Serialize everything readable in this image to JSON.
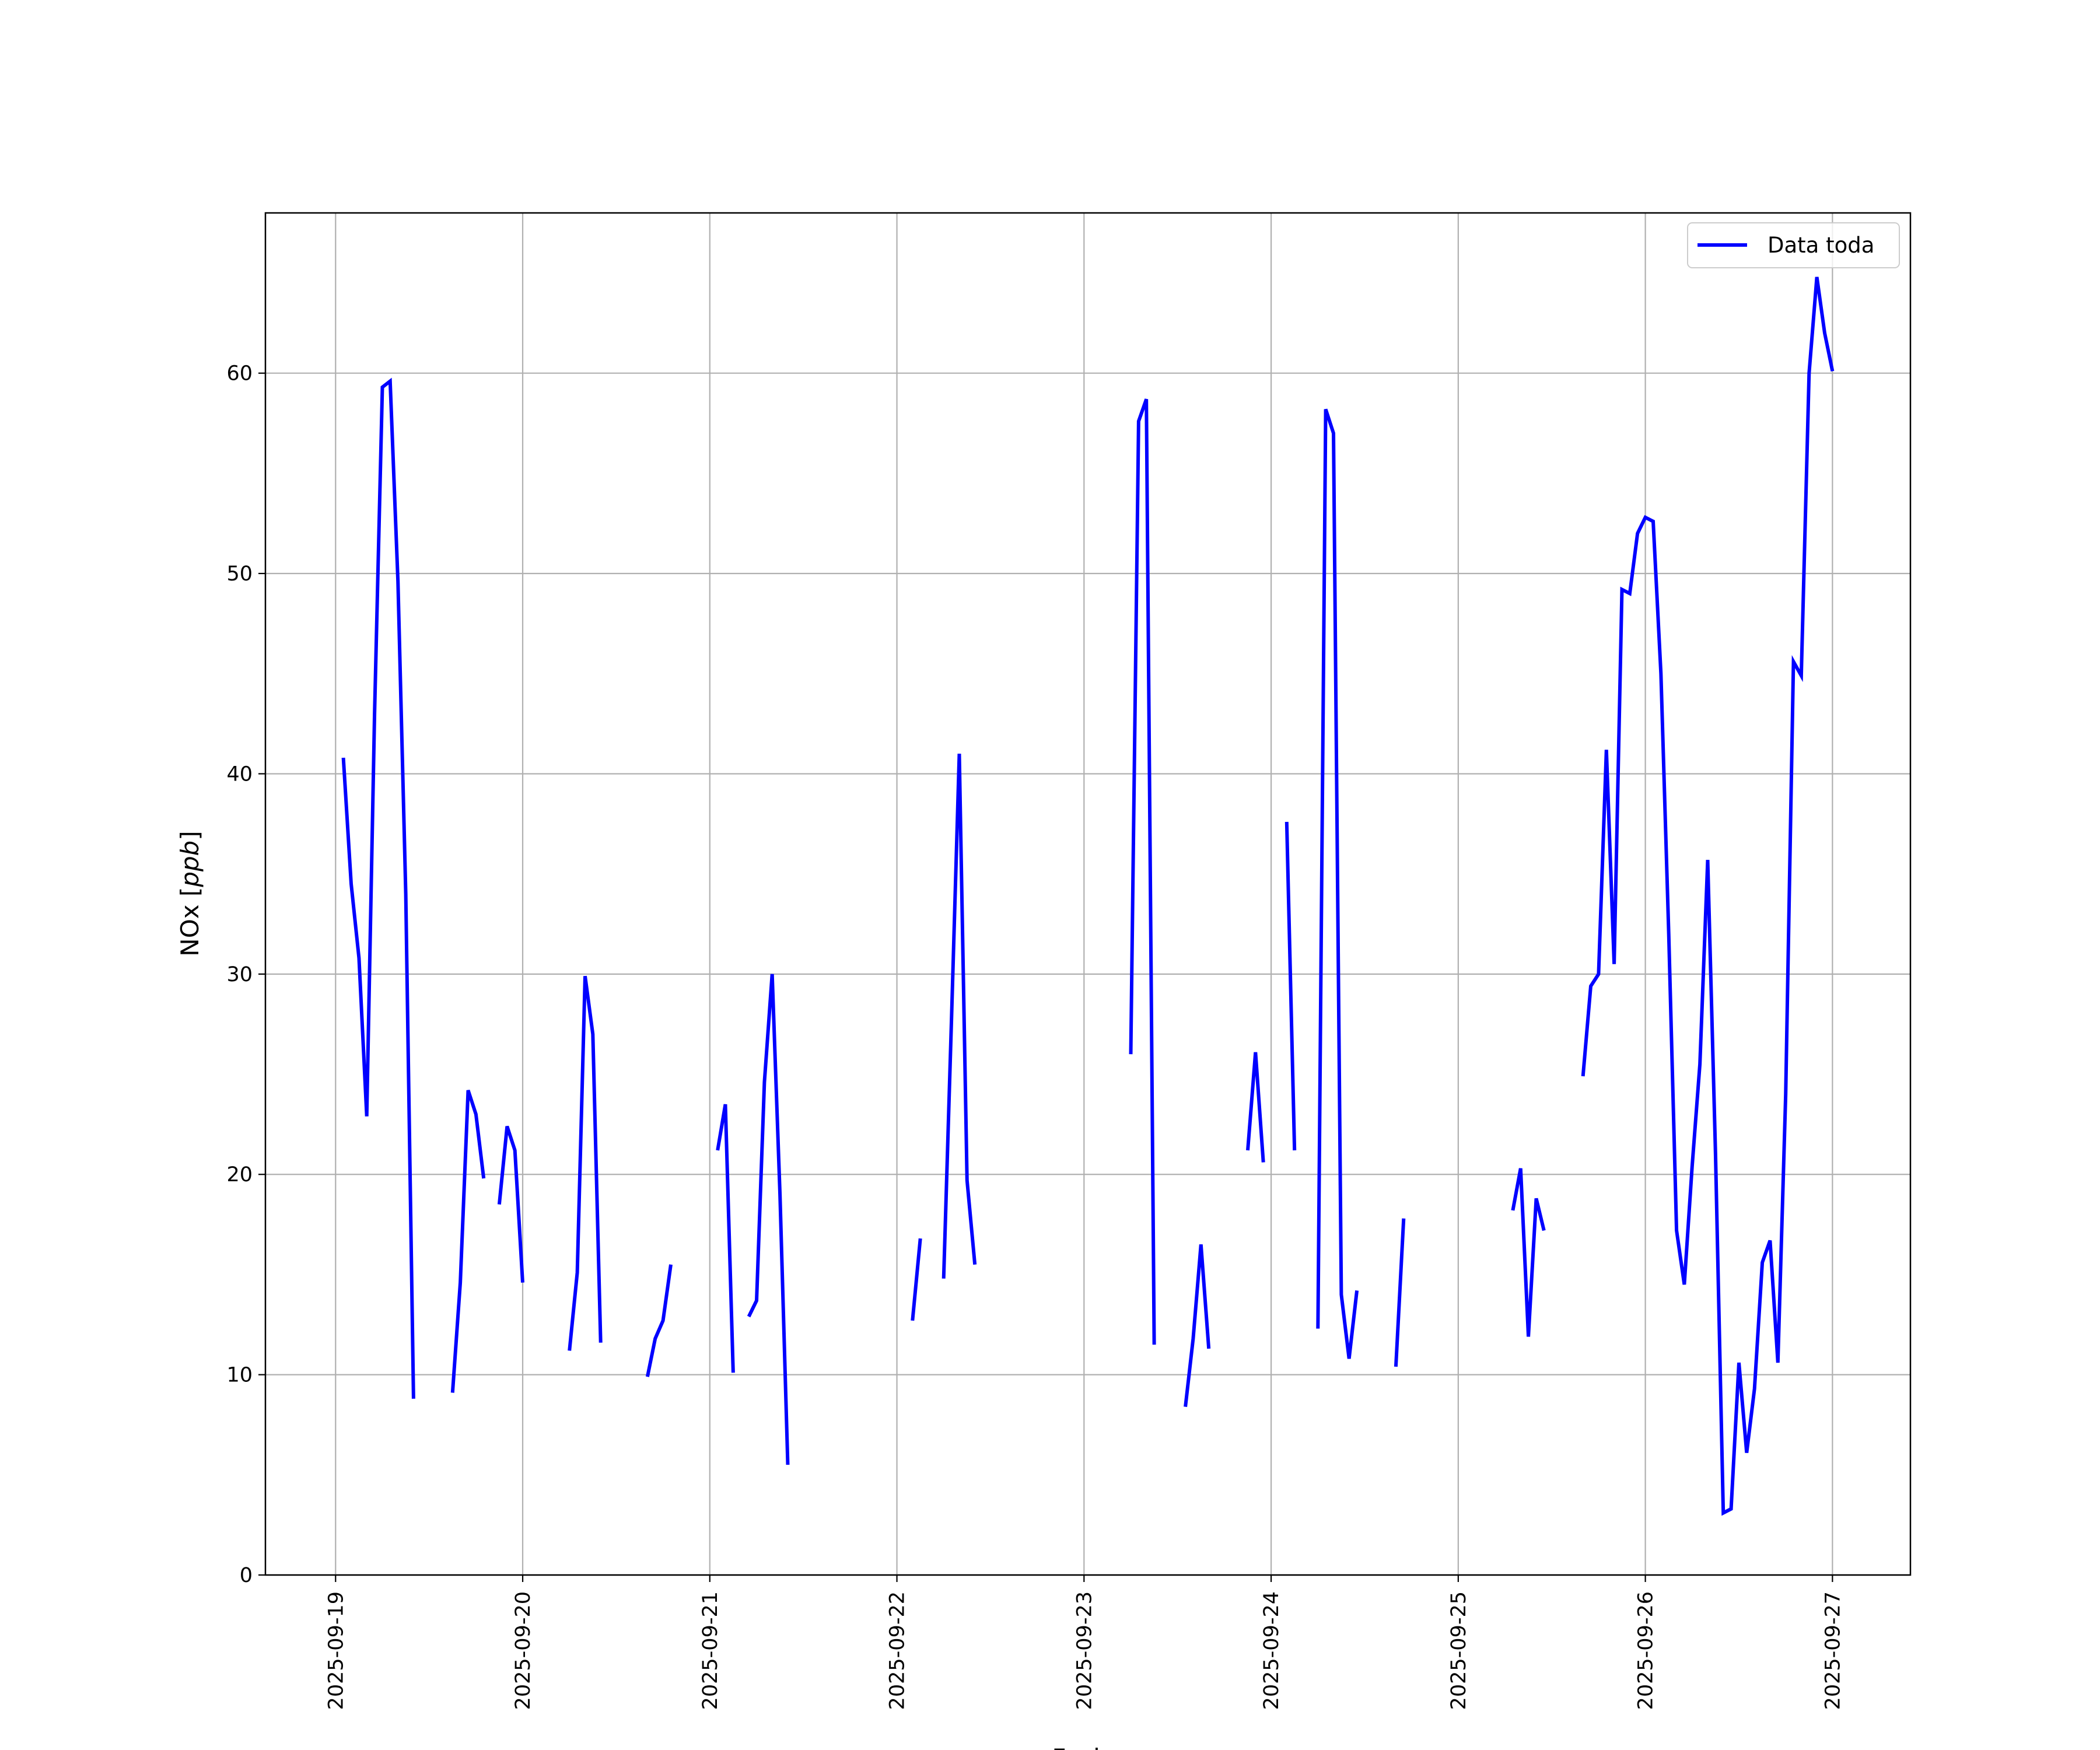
{
  "chart_data": {
    "type": "line",
    "title": "",
    "xlabel": "Fecha",
    "ylabel": {
      "prefix": "NOx [",
      "unit": "ppb",
      "suffix": "]"
    },
    "xlim": [
      "2025-09-18 15:00",
      "2025-09-27 10:00"
    ],
    "ylim": [
      0,
      68
    ],
    "grid": true,
    "legend": {
      "location": "top-right"
    },
    "x_ticks": [
      "2025-09-19",
      "2025-09-20",
      "2025-09-21",
      "2025-09-22",
      "2025-09-23",
      "2025-09-24",
      "2025-09-25",
      "2025-09-26",
      "2025-09-27"
    ],
    "y_ticks": [
      0,
      10,
      20,
      30,
      40,
      50,
      60
    ],
    "series": [
      {
        "name": "Data toda",
        "color": "#0000ff",
        "segments": [
          [
            [
              "2025-09-19 01:00",
              40.8
            ],
            [
              "2025-09-19 02:00",
              34.5
            ],
            [
              "2025-09-19 03:00",
              30.8
            ],
            [
              "2025-09-19 04:00",
              22.9
            ],
            [
              "2025-09-19 05:00",
              43.0
            ],
            [
              "2025-09-19 06:00",
              59.3
            ],
            [
              "2025-09-19 07:00",
              59.6
            ],
            [
              "2025-09-19 08:00",
              49.6
            ],
            [
              "2025-09-19 09:00",
              34.0
            ],
            [
              "2025-09-19 10:00",
              8.8
            ]
          ],
          [
            [
              "2025-09-19 15:00",
              9.1
            ],
            [
              "2025-09-19 16:00",
              14.6
            ],
            [
              "2025-09-19 17:00",
              24.2
            ],
            [
              "2025-09-19 18:00",
              23.0
            ],
            [
              "2025-09-19 19:00",
              19.8
            ]
          ],
          [
            [
              "2025-09-19 21:00",
              18.5
            ],
            [
              "2025-09-19 22:00",
              22.4
            ],
            [
              "2025-09-19 23:00",
              21.2
            ],
            [
              "2025-09-20 00:00",
              14.6
            ]
          ],
          [
            [
              "2025-09-20 06:00",
              11.2
            ],
            [
              "2025-09-20 07:00",
              15.1
            ],
            [
              "2025-09-20 08:00",
              29.9
            ],
            [
              "2025-09-20 09:00",
              27.0
            ],
            [
              "2025-09-20 10:00",
              11.6
            ]
          ],
          [
            [
              "2025-09-20 16:00",
              9.9
            ],
            [
              "2025-09-20 17:00",
              11.8
            ],
            [
              "2025-09-20 18:00",
              12.7
            ],
            [
              "2025-09-20 19:00",
              15.5
            ]
          ],
          [
            [
              "2025-09-21 01:00",
              21.2
            ],
            [
              "2025-09-21 02:00",
              23.5
            ],
            [
              "2025-09-21 03:00",
              10.1
            ]
          ],
          [
            [
              "2025-09-21 05:00",
              12.9
            ],
            [
              "2025-09-21 06:00",
              13.7
            ],
            [
              "2025-09-21 07:00",
              24.6
            ],
            [
              "2025-09-21 08:00",
              30.0
            ],
            [
              "2025-09-21 09:00",
              19.0
            ],
            [
              "2025-09-21 10:00",
              5.5
            ]
          ],
          [
            [
              "2025-09-22 02:00",
              12.7
            ],
            [
              "2025-09-22 03:00",
              16.8
            ]
          ],
          [
            [
              "2025-09-22 06:00",
              14.8
            ],
            [
              "2025-09-22 07:00",
              27.7
            ],
            [
              "2025-09-22 08:00",
              41.0
            ],
            [
              "2025-09-22 09:00",
              19.7
            ],
            [
              "2025-09-22 10:00",
              15.5
            ]
          ],
          [
            [
              "2025-09-23 06:00",
              26.0
            ],
            [
              "2025-09-23 07:00",
              57.6
            ],
            [
              "2025-09-23 08:00",
              58.7
            ],
            [
              "2025-09-23 09:00",
              11.5
            ]
          ],
          [
            [
              "2025-09-23 13:00",
              8.4
            ],
            [
              "2025-09-23 14:00",
              11.8
            ],
            [
              "2025-09-23 15:00",
              16.5
            ],
            [
              "2025-09-23 16:00",
              11.3
            ]
          ],
          [
            [
              "2025-09-23 21:00",
              21.2
            ],
            [
              "2025-09-23 22:00",
              26.1
            ],
            [
              "2025-09-23 23:00",
              20.6
            ]
          ],
          [
            [
              "2025-09-24 02:00",
              37.6
            ],
            [
              "2025-09-24 03:00",
              21.2
            ]
          ],
          [
            [
              "2025-09-24 06:00",
              12.3
            ],
            [
              "2025-09-24 07:00",
              58.2
            ],
            [
              "2025-09-24 08:00",
              57.0
            ],
            [
              "2025-09-24 09:00",
              14.0
            ],
            [
              "2025-09-24 10:00",
              10.8
            ],
            [
              "2025-09-24 11:00",
              14.2
            ]
          ],
          [
            [
              "2025-09-24 16:00",
              10.4
            ],
            [
              "2025-09-24 17:00",
              17.8
            ]
          ],
          [
            [
              "2025-09-25 07:00",
              18.2
            ],
            [
              "2025-09-25 08:00",
              20.3
            ],
            [
              "2025-09-25 09:00",
              11.9
            ],
            [
              "2025-09-25 10:00",
              18.8
            ],
            [
              "2025-09-25 11:00",
              17.2
            ]
          ],
          [
            [
              "2025-09-25 16:00",
              24.9
            ],
            [
              "2025-09-25 17:00",
              29.4
            ],
            [
              "2025-09-25 18:00",
              30.0
            ],
            [
              "2025-09-25 19:00",
              41.2
            ],
            [
              "2025-09-25 20:00",
              30.5
            ],
            [
              "2025-09-25 21:00",
              49.2
            ],
            [
              "2025-09-25 22:00",
              49.0
            ],
            [
              "2025-09-25 23:00",
              52.0
            ],
            [
              "2025-09-26 00:00",
              52.8
            ],
            [
              "2025-09-26 01:00",
              52.6
            ],
            [
              "2025-09-26 02:00",
              45.0
            ],
            [
              "2025-09-26 03:00",
              32.0
            ],
            [
              "2025-09-26 04:00",
              17.2
            ],
            [
              "2025-09-26 05:00",
              14.5
            ],
            [
              "2025-09-26 06:00",
              20.4
            ],
            [
              "2025-09-26 07:00",
              25.5
            ],
            [
              "2025-09-26 08:00",
              35.7
            ],
            [
              "2025-09-26 09:00",
              21.0
            ],
            [
              "2025-09-26 10:00",
              3.1
            ],
            [
              "2025-09-26 11:00",
              3.3
            ],
            [
              "2025-09-26 12:00",
              10.6
            ],
            [
              "2025-09-26 13:00",
              6.1
            ],
            [
              "2025-09-26 14:00",
              9.3
            ],
            [
              "2025-09-26 15:00",
              15.6
            ],
            [
              "2025-09-26 16:00",
              16.7
            ],
            [
              "2025-09-26 17:00",
              10.6
            ],
            [
              "2025-09-26 18:00",
              24.0
            ],
            [
              "2025-09-26 19:00",
              45.6
            ],
            [
              "2025-09-26 20:00",
              44.9
            ],
            [
              "2025-09-26 21:00",
              60.0
            ],
            [
              "2025-09-26 22:00",
              64.8
            ],
            [
              "2025-09-26 23:00",
              62.0
            ],
            [
              "2025-09-27 00:00",
              60.1
            ]
          ]
        ]
      }
    ]
  }
}
